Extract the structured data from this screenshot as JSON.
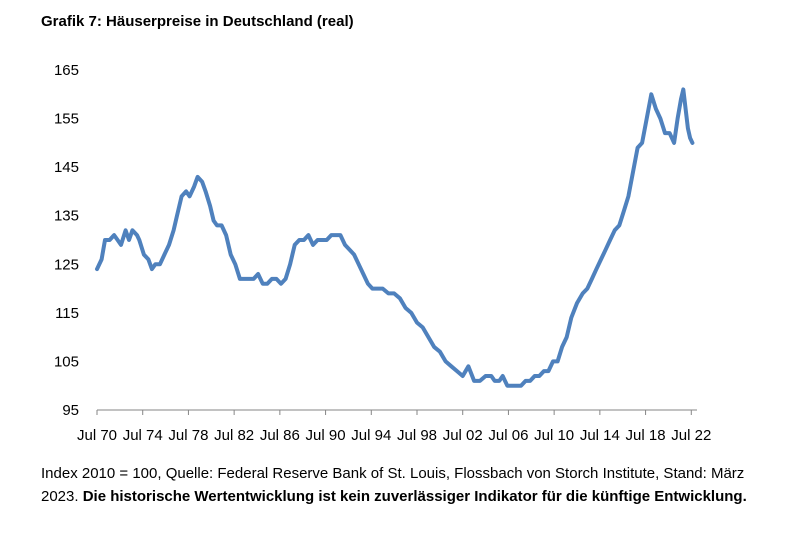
{
  "title": "Grafik 7: Häuserpreise in Deutschland (real)",
  "footnote": {
    "source_text": "Index 2010 = 100, Quelle: Federal Reserve Bank of St. Louis, Flossbach von Storch Institute, Stand: März 2023.",
    "disclaimer": "Die historische Wertentwicklung ist kein zuverlässiger Indikator für die künftige Entwicklung."
  },
  "chart_data": {
    "type": "line",
    "title": "Grafik 7: Häuserpreise in Deutschland (real)",
    "xlabel": "",
    "ylabel": "",
    "ylim": [
      95,
      165
    ],
    "yticks": [
      95,
      105,
      115,
      125,
      135,
      145,
      155,
      165
    ],
    "xlim": [
      1970.5,
      2023.0
    ],
    "xticks": [
      {
        "value": 1970.5,
        "label": "Jul 70"
      },
      {
        "value": 1974.5,
        "label": "Jul 74"
      },
      {
        "value": 1978.5,
        "label": "Jul 78"
      },
      {
        "value": 1982.5,
        "label": "Jul 82"
      },
      {
        "value": 1986.5,
        "label": "Jul 86"
      },
      {
        "value": 1990.5,
        "label": "Jul 90"
      },
      {
        "value": 1994.5,
        "label": "Jul 94"
      },
      {
        "value": 1998.5,
        "label": "Jul 98"
      },
      {
        "value": 2002.5,
        "label": "Jul 02"
      },
      {
        "value": 2006.5,
        "label": "Jul 06"
      },
      {
        "value": 2010.5,
        "label": "Jul 10"
      },
      {
        "value": 2014.5,
        "label": "Jul 14"
      },
      {
        "value": 2018.5,
        "label": "Jul 18"
      },
      {
        "value": 2022.5,
        "label": "Jul 22"
      }
    ],
    "grid": false,
    "legend": "none",
    "line_color": "#4F81BD",
    "series": [
      {
        "x": [
          1970.5,
          1970.9,
          1971.2,
          1971.6,
          1972.0,
          1972.3,
          1972.6,
          1973.0,
          1973.3,
          1973.6,
          1974.0,
          1974.2,
          1974.6,
          1975.0,
          1975.3,
          1975.6,
          1976.0,
          1976.4,
          1976.8,
          1977.2,
          1977.5,
          1977.9,
          1978.3,
          1978.6,
          1979.0,
          1979.3,
          1979.7,
          1980.0,
          1980.4,
          1980.7,
          1981.0,
          1981.4,
          1981.8,
          1982.2,
          1982.6,
          1983.0,
          1983.4,
          1983.8,
          1984.2,
          1984.6,
          1985.0,
          1985.4,
          1985.8,
          1986.2,
          1986.6,
          1987.0,
          1987.4,
          1987.8,
          1988.2,
          1988.6,
          1989.0,
          1989.4,
          1989.8,
          1990.2,
          1990.6,
          1991.0,
          1991.4,
          1991.8,
          1992.2,
          1992.6,
          1993.0,
          1993.4,
          1993.8,
          1994.2,
          1994.6,
          1995.0,
          1995.5,
          1996.0,
          1996.5,
          1997.0,
          1997.5,
          1998.0,
          1998.5,
          1999.0,
          1999.5,
          2000.0,
          2000.5,
          2001.0,
          2001.5,
          2002.0,
          2002.5,
          2003.0,
          2003.5,
          2004.0,
          2004.5,
          2005.0,
          2005.3,
          2005.7,
          2006.0,
          2006.4,
          2006.8,
          2007.2,
          2007.6,
          2008.0,
          2008.4,
          2008.8,
          2009.2,
          2009.6,
          2010.0,
          2010.4,
          2010.8,
          2011.2,
          2011.6,
          2012.0,
          2012.5,
          2013.0,
          2013.4,
          2013.8,
          2014.2,
          2014.6,
          2015.0,
          2015.4,
          2015.8,
          2016.2,
          2016.6,
          2017.0,
          2017.4,
          2017.8,
          2018.2,
          2018.6,
          2019.0,
          2019.4,
          2019.8,
          2020.2,
          2020.6,
          2021.0,
          2021.3,
          2021.6,
          2021.8,
          2022.0,
          2022.2,
          2022.4,
          2022.6
        ],
        "y": [
          124,
          126,
          130,
          130,
          131,
          130,
          129,
          132,
          130,
          132,
          131,
          130,
          127,
          126,
          124,
          125,
          125,
          127,
          129,
          132,
          135,
          139,
          140,
          139,
          141,
          143,
          142,
          140,
          137,
          134,
          133,
          133,
          131,
          127,
          125,
          122,
          122,
          122,
          122,
          123,
          121,
          121,
          122,
          122,
          121,
          122,
          125,
          129,
          130,
          130,
          131,
          129,
          130,
          130,
          130,
          131,
          131,
          131,
          129,
          128,
          127,
          125,
          123,
          121,
          120,
          120,
          120,
          119,
          119,
          118,
          116,
          115,
          113,
          112,
          110,
          108,
          107,
          105,
          104,
          103,
          102,
          104,
          101,
          101,
          102,
          102,
          101,
          101,
          102,
          100,
          100,
          100,
          100,
          101,
          101,
          102,
          102,
          103,
          103,
          105,
          105,
          108,
          110,
          114,
          117,
          119,
          120,
          122,
          124,
          126,
          128,
          130,
          132,
          133,
          136,
          139,
          144,
          149,
          150,
          155,
          160,
          157,
          155,
          152,
          152,
          150,
          155,
          159,
          161,
          157,
          153,
          151,
          150
        ]
      }
    ]
  }
}
